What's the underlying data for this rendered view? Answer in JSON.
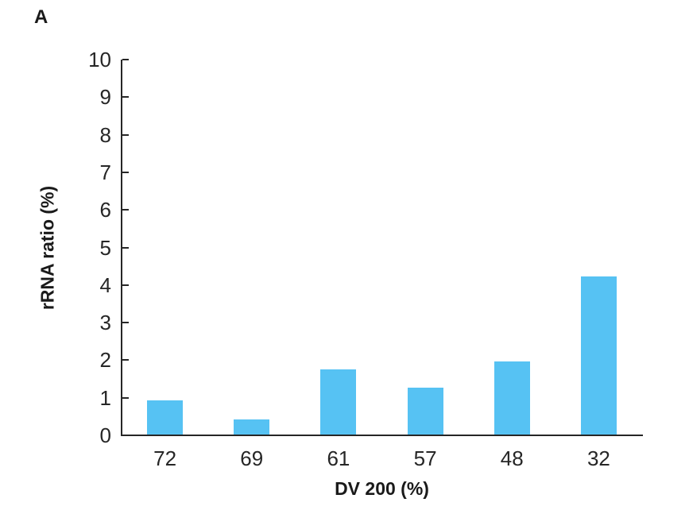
{
  "panel_label": "A",
  "chart_data": {
    "type": "bar",
    "title": "",
    "categories": [
      "72",
      "69",
      "61",
      "57",
      "48",
      "32"
    ],
    "values": [
      0.9,
      0.4,
      1.73,
      1.25,
      1.95,
      4.2
    ],
    "xlabel": "DV 200 (%)",
    "ylabel": "rRNA ratio (%)",
    "ylim": [
      0,
      10
    ],
    "ytick_step": 1,
    "yticks": [
      0,
      1,
      2,
      3,
      4,
      5,
      6,
      7,
      8,
      9,
      10
    ],
    "grid": false,
    "legend_position": "none",
    "bar_color": "#56C2F3",
    "axis_color": "#262626",
    "text_color": "#1a1a1a"
  }
}
